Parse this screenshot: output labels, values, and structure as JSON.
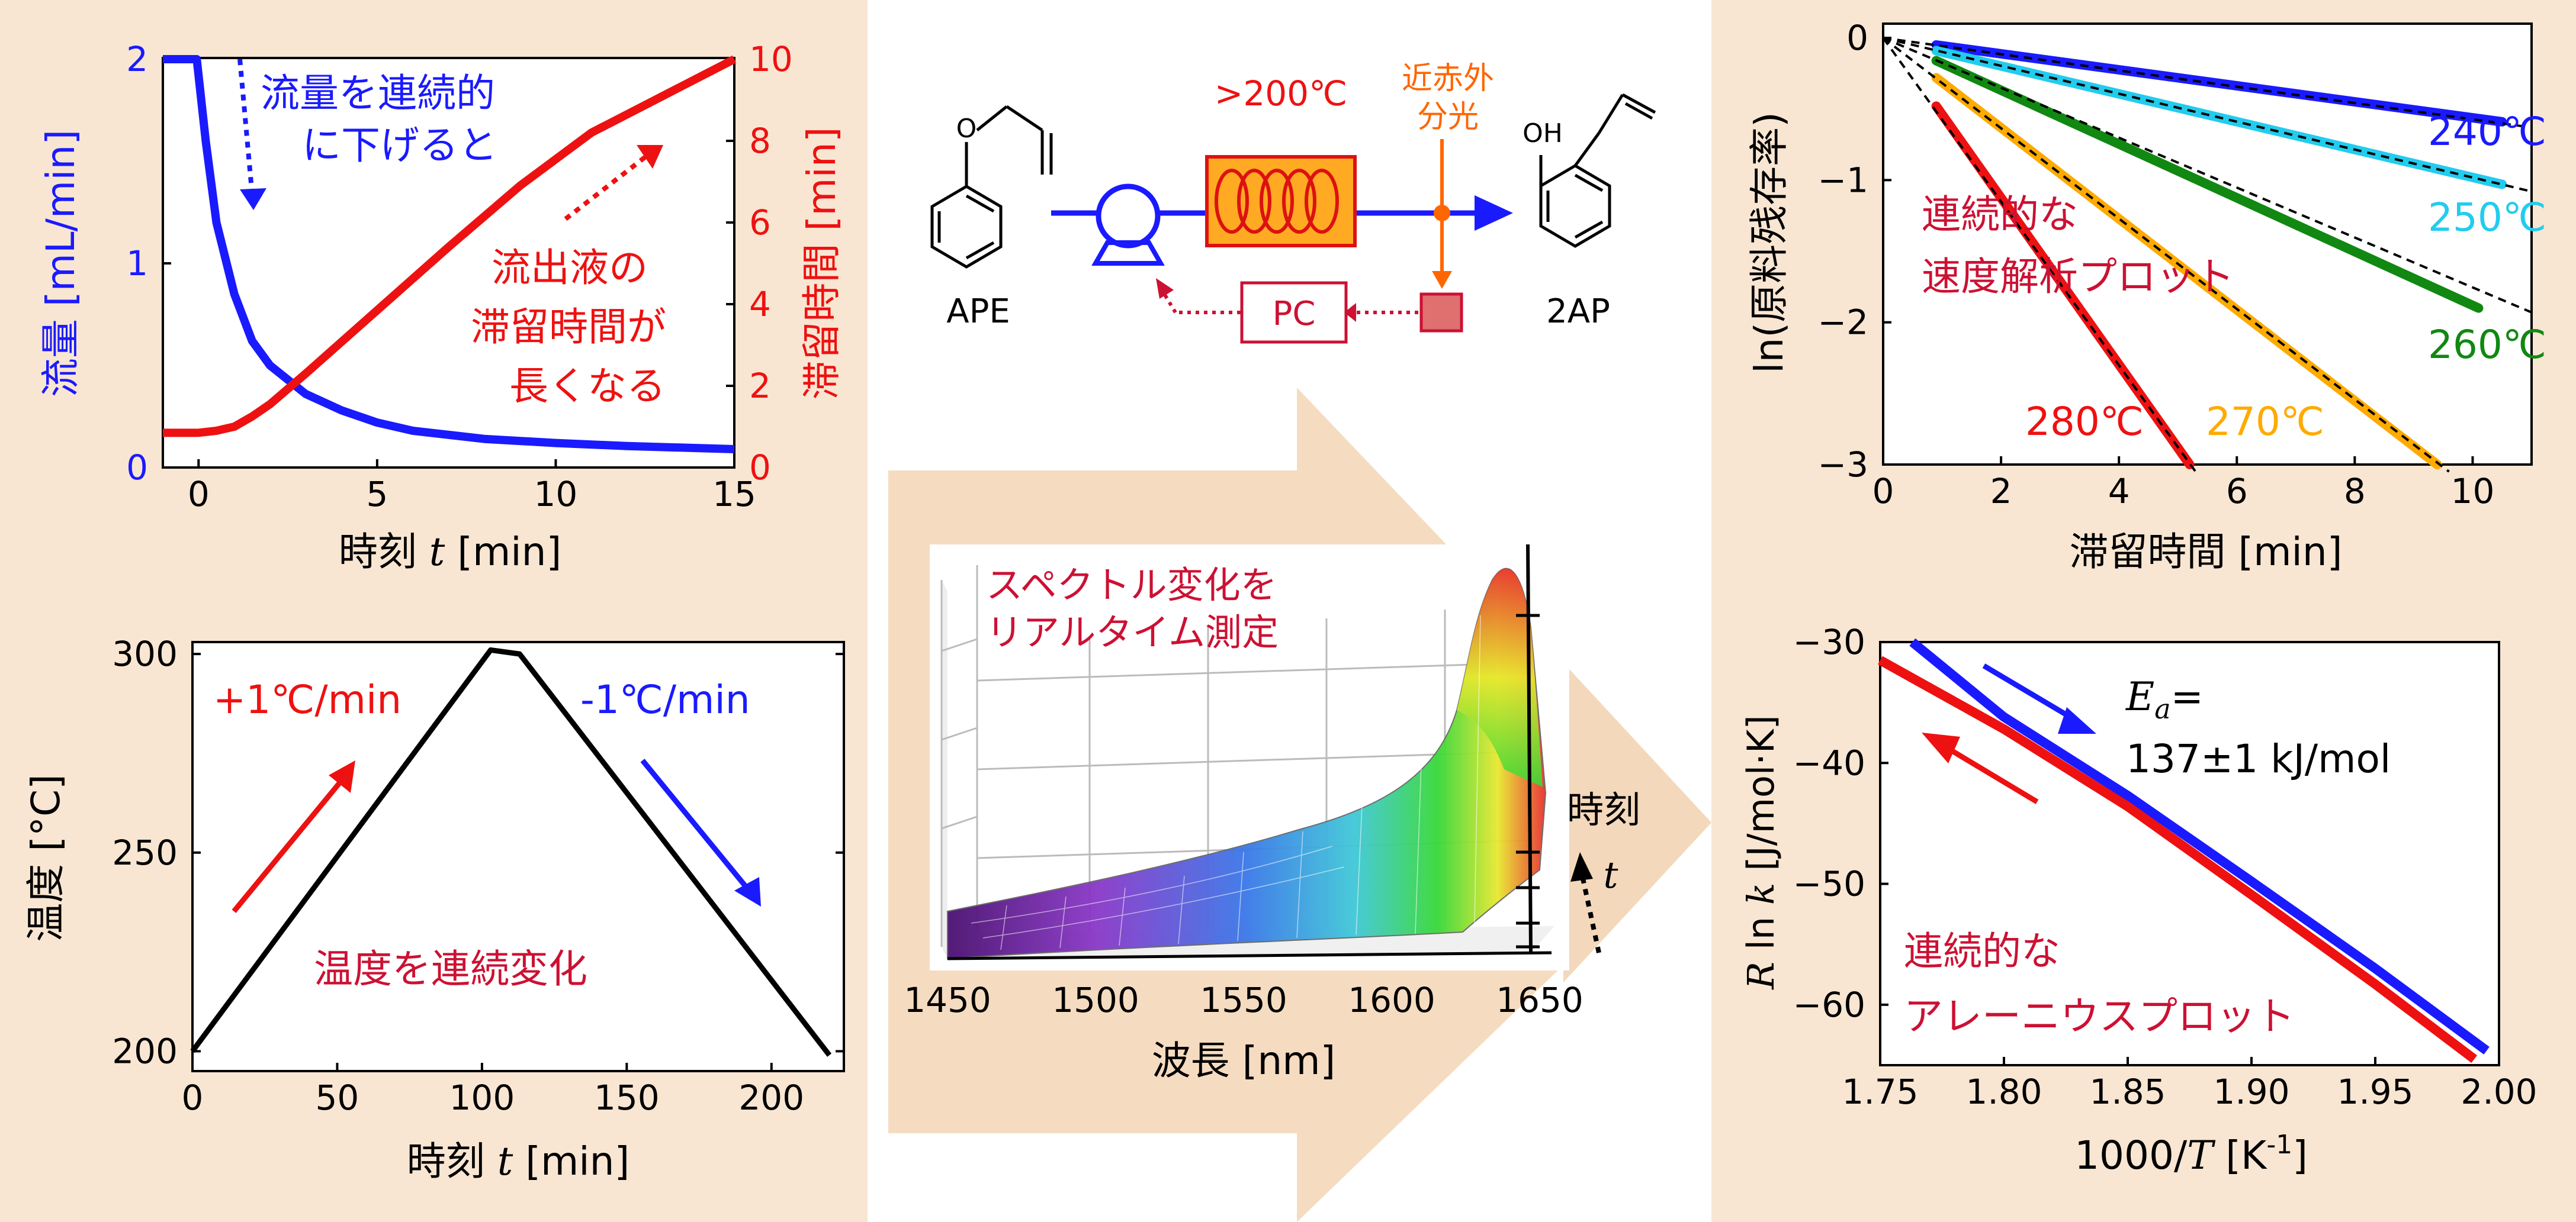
{
  "colors": {
    "panel_bg": "#f8e6d2",
    "arrow_bg": "#f5dcc0",
    "blue": "#1a1aff",
    "red": "#ee1111",
    "crimson": "#cc1133",
    "orange": "#ff6600",
    "black": "#000000"
  },
  "chart_data": [
    {
      "id": "flow-residence",
      "type": "line",
      "xlabel_main": "時刻",
      "xlabel_var": "t",
      "xlabel_unit": "[min]",
      "ylabel_left": "流量 [mL/min]",
      "ylabel_right": "滞留時間 [min]",
      "xlim": [
        -1,
        15
      ],
      "ylim_left": [
        0,
        2
      ],
      "ylim_right": [
        0,
        10
      ],
      "xticks": [
        0,
        5,
        10,
        15
      ],
      "yticks_left": [
        0,
        1,
        2
      ],
      "yticks_right": [
        0,
        2,
        4,
        6,
        8,
        10
      ],
      "series": [
        {
          "axis": "left",
          "color": "blue",
          "x": [
            -1,
            -0.05,
            0.2,
            0.5,
            1,
            1.5,
            2,
            3,
            4,
            5,
            6,
            8,
            10,
            12,
            15
          ],
          "y": [
            2.0,
            2.0,
            1.6,
            1.2,
            0.85,
            0.62,
            0.5,
            0.36,
            0.28,
            0.22,
            0.18,
            0.14,
            0.12,
            0.105,
            0.09
          ]
        },
        {
          "axis": "right",
          "color": "red",
          "x": [
            -1,
            0,
            0.5,
            1,
            1.5,
            2,
            3,
            5,
            7,
            9,
            11,
            13,
            15
          ],
          "y": [
            0.85,
            0.85,
            0.9,
            1.0,
            1.25,
            1.55,
            2.3,
            3.85,
            5.4,
            6.9,
            8.2,
            9.1,
            10.0
          ]
        }
      ],
      "annotations": [
        "流量を連続的",
        "に下げると",
        "流出液の",
        "滞留時間が",
        "長くなる"
      ]
    },
    {
      "id": "temperature-ramp",
      "type": "line",
      "xlabel_main": "時刻",
      "xlabel_var": "t",
      "xlabel_unit": "[min]",
      "ylabel": "温度 [°C]",
      "xlim": [
        0,
        225
      ],
      "ylim": [
        195,
        303
      ],
      "xticks": [
        0,
        50,
        100,
        150,
        200
      ],
      "yticks": [
        200,
        250,
        300
      ],
      "series": [
        {
          "color": "black",
          "x": [
            0,
            103,
            113,
            220
          ],
          "y": [
            200,
            301,
            300,
            199
          ]
        }
      ],
      "annotations": [
        "+1℃/min",
        "-1℃/min",
        "温度を連続変化"
      ]
    },
    {
      "id": "rate-plot",
      "type": "line",
      "xlabel": "滞留時間 [min]",
      "ylabel": "ln(原料残存率)",
      "xlim": [
        0,
        11
      ],
      "ylim": [
        -3,
        0.1
      ],
      "xticks": [
        0,
        2,
        4,
        6,
        8,
        10
      ],
      "yticks": [
        0,
        -1,
        -2,
        -3
      ],
      "series": [
        {
          "name": "240℃",
          "color": "#1a1aff",
          "x": [
            0.9,
            10.5
          ],
          "y": [
            -0.05,
            -0.59
          ]
        },
        {
          "name": "250℃",
          "color": "#22ccee",
          "x": [
            0.9,
            10.5
          ],
          "y": [
            -0.09,
            -1.03
          ]
        },
        {
          "name": "260℃",
          "color": "#118811",
          "x": [
            0.9,
            10.1
          ],
          "y": [
            -0.16,
            -1.9
          ]
        },
        {
          "name": "270℃",
          "color": "#ffaa00",
          "x": [
            0.9,
            9.4
          ],
          "y": [
            -0.28,
            -3.0
          ]
        },
        {
          "name": "280℃",
          "color": "#ee1111",
          "x": [
            0.9,
            5.2
          ],
          "y": [
            -0.48,
            -3.0
          ]
        }
      ],
      "label_texts": [
        "240℃",
        "250℃",
        "260℃",
        "270℃",
        "280℃"
      ],
      "annotation": [
        "連続的な",
        "速度解析プロット"
      ]
    },
    {
      "id": "arrhenius-plot",
      "type": "line",
      "xlabel_main": "1000/",
      "xlabel_var": "T",
      "xlabel_unit": "[K",
      "xlabel_sup": "-1",
      "xlabel_close": "]",
      "ylabel_var": "R",
      "ylabel_mid": " ln ",
      "ylabel_var2": "k",
      "ylabel_unit": " [J/mol·K]",
      "xlim": [
        1.75,
        2.0
      ],
      "ylim": [
        -65,
        -30
      ],
      "xticks": [
        1.75,
        1.8,
        1.85,
        1.9,
        1.95,
        2.0
      ],
      "xtick_labels": [
        "1.75",
        "1.80",
        "1.85",
        "1.90",
        "1.95",
        "2.00"
      ],
      "yticks": [
        -30,
        -40,
        -50,
        -60
      ],
      "series": [
        {
          "color": "#1a1aff",
          "x": [
            1.763,
            1.8,
            1.85,
            1.9,
            1.95,
            1.995
          ],
          "y": [
            -30.0,
            -36.2,
            -42.7,
            -49.8,
            -57.0,
            -63.8
          ]
        },
        {
          "color": "#ee1111",
          "x": [
            1.75,
            1.8,
            1.85,
            1.9,
            1.95,
            1.99
          ],
          "y": [
            -31.5,
            -37.2,
            -43.6,
            -50.9,
            -58.3,
            -64.5
          ]
        }
      ],
      "ea_var": "E",
      "ea_sub": "a",
      "ea_eq": "=",
      "ea_value": "137±1 kJ/mol",
      "annotation": [
        "連続的な",
        "アレーニウスプロット"
      ]
    },
    {
      "id": "nir-3d-surface",
      "type": "surface",
      "title_lines": [
        "スペクトル変化を",
        "リアルタイム測定"
      ],
      "xlabel": "波長 [nm]",
      "xticks": [
        1450,
        1500,
        1550,
        1600,
        1650
      ],
      "ylabel_main": "時刻",
      "ylabel_var": "t"
    }
  ],
  "scheme": {
    "reactant": "APE",
    "product": "2AP",
    "temp_label": ">200℃",
    "nir_label_line1": "近赤外",
    "nir_label_line2": "分光",
    "controller": "PC",
    "oh_label": "OH",
    "o_label": "O"
  }
}
